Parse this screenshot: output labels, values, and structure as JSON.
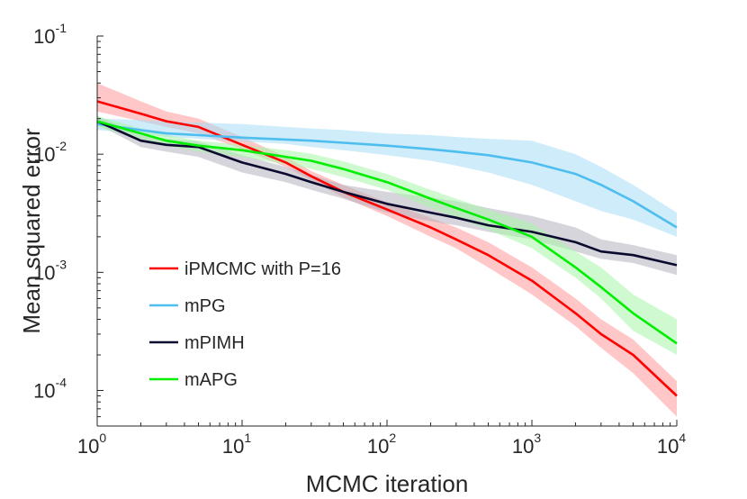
{
  "chart_data": {
    "type": "line",
    "title": "",
    "xlabel": "MCMC iteration",
    "ylabel": "Mean squared error",
    "xscale": "log",
    "yscale": "log",
    "xlim": [
      1,
      10000
    ],
    "ylim": [
      5e-05,
      0.1
    ],
    "x_ticks": [
      {
        "base": "10",
        "exp": "0",
        "value": 1
      },
      {
        "base": "10",
        "exp": "1",
        "value": 10
      },
      {
        "base": "10",
        "exp": "2",
        "value": 100
      },
      {
        "base": "10",
        "exp": "3",
        "value": 1000
      },
      {
        "base": "10",
        "exp": "4",
        "value": 10000
      }
    ],
    "y_ticks": [
      {
        "base": "10",
        "exp": "-4",
        "value": 0.0001
      },
      {
        "base": "10",
        "exp": "-3",
        "value": 0.001
      },
      {
        "base": "10",
        "exp": "-2",
        "value": 0.01
      },
      {
        "base": "10",
        "exp": "-1",
        "value": 0.1
      }
    ],
    "legend_position": "lower-left",
    "series": [
      {
        "name": "iPMCMC with P=16",
        "color": "#ff0000",
        "band_color": "#ff9999",
        "x": [
          1,
          2,
          3,
          5,
          10,
          20,
          30,
          50,
          100,
          200,
          300,
          500,
          1000,
          2000,
          3000,
          5000,
          10000
        ],
        "values": [
          0.028,
          0.022,
          0.019,
          0.017,
          0.012,
          0.0085,
          0.0065,
          0.0048,
          0.0034,
          0.0024,
          0.0019,
          0.0014,
          0.00085,
          0.00045,
          0.0003,
          0.0002,
          9e-05
        ],
        "lower": [
          0.023,
          0.019,
          0.017,
          0.015,
          0.011,
          0.0078,
          0.006,
          0.0043,
          0.003,
          0.002,
          0.0016,
          0.0011,
          0.00065,
          0.00035,
          0.00023,
          0.00014,
          6e-05
        ],
        "upper": [
          0.04,
          0.028,
          0.023,
          0.02,
          0.014,
          0.0095,
          0.0072,
          0.0055,
          0.0039,
          0.0029,
          0.0024,
          0.0018,
          0.0011,
          0.0006,
          0.0004,
          0.00027,
          0.00012
        ]
      },
      {
        "name": "mPG",
        "color": "#4dbeee",
        "band_color": "#a6ddf5",
        "x": [
          1,
          2,
          3,
          5,
          10,
          20,
          30,
          50,
          100,
          200,
          300,
          500,
          1000,
          2000,
          3000,
          5000,
          10000
        ],
        "values": [
          0.018,
          0.016,
          0.015,
          0.0145,
          0.0138,
          0.0133,
          0.013,
          0.0125,
          0.0118,
          0.011,
          0.0105,
          0.0098,
          0.0085,
          0.0068,
          0.0055,
          0.004,
          0.0024
        ],
        "lower": [
          0.016,
          0.015,
          0.014,
          0.0135,
          0.0128,
          0.0122,
          0.0115,
          0.0108,
          0.0098,
          0.0088,
          0.008,
          0.007,
          0.0055,
          0.004,
          0.0033,
          0.0028,
          0.002
        ],
        "upper": [
          0.02,
          0.0195,
          0.019,
          0.0185,
          0.018,
          0.017,
          0.0165,
          0.016,
          0.015,
          0.0145,
          0.014,
          0.0135,
          0.013,
          0.01,
          0.0078,
          0.0055,
          0.0032
        ]
      },
      {
        "name": "mPIMH",
        "color": "#0a0a2e",
        "band_color": "#b3b3bd",
        "x": [
          1,
          2,
          3,
          5,
          10,
          20,
          30,
          50,
          100,
          200,
          300,
          500,
          1000,
          2000,
          3000,
          5000,
          10000
        ],
        "values": [
          0.019,
          0.013,
          0.012,
          0.0115,
          0.0085,
          0.0068,
          0.0058,
          0.0048,
          0.0038,
          0.0032,
          0.0029,
          0.0025,
          0.0022,
          0.0018,
          0.0015,
          0.0014,
          0.00115
        ],
        "lower": [
          0.018,
          0.0115,
          0.0105,
          0.0095,
          0.007,
          0.0058,
          0.005,
          0.0042,
          0.0032,
          0.0027,
          0.0025,
          0.0022,
          0.0019,
          0.0015,
          0.0013,
          0.0012,
          0.00095
        ],
        "upper": [
          0.021,
          0.0145,
          0.0135,
          0.0128,
          0.0098,
          0.0078,
          0.0067,
          0.0055,
          0.0048,
          0.0043,
          0.004,
          0.0035,
          0.003,
          0.0024,
          0.0019,
          0.0017,
          0.0014
        ]
      },
      {
        "name": "mAPG",
        "color": "#00ee00",
        "band_color": "#a8f5a8",
        "x": [
          1,
          2,
          3,
          5,
          10,
          20,
          30,
          50,
          100,
          200,
          300,
          500,
          1000,
          2000,
          3000,
          5000,
          10000
        ],
        "values": [
          0.019,
          0.015,
          0.013,
          0.0118,
          0.0108,
          0.0095,
          0.0088,
          0.0075,
          0.0058,
          0.0042,
          0.0035,
          0.0028,
          0.002,
          0.0011,
          0.00075,
          0.00045,
          0.00025
        ],
        "lower": [
          0.017,
          0.0135,
          0.0118,
          0.0105,
          0.0095,
          0.0082,
          0.0075,
          0.0064,
          0.005,
          0.0035,
          0.0029,
          0.0023,
          0.0016,
          0.0009,
          0.0006,
          0.00032,
          0.0002
        ],
        "upper": [
          0.021,
          0.0165,
          0.0145,
          0.013,
          0.012,
          0.0108,
          0.0101,
          0.0087,
          0.0068,
          0.005,
          0.0042,
          0.0034,
          0.0026,
          0.0015,
          0.0011,
          0.00065,
          0.0004
        ]
      }
    ]
  }
}
